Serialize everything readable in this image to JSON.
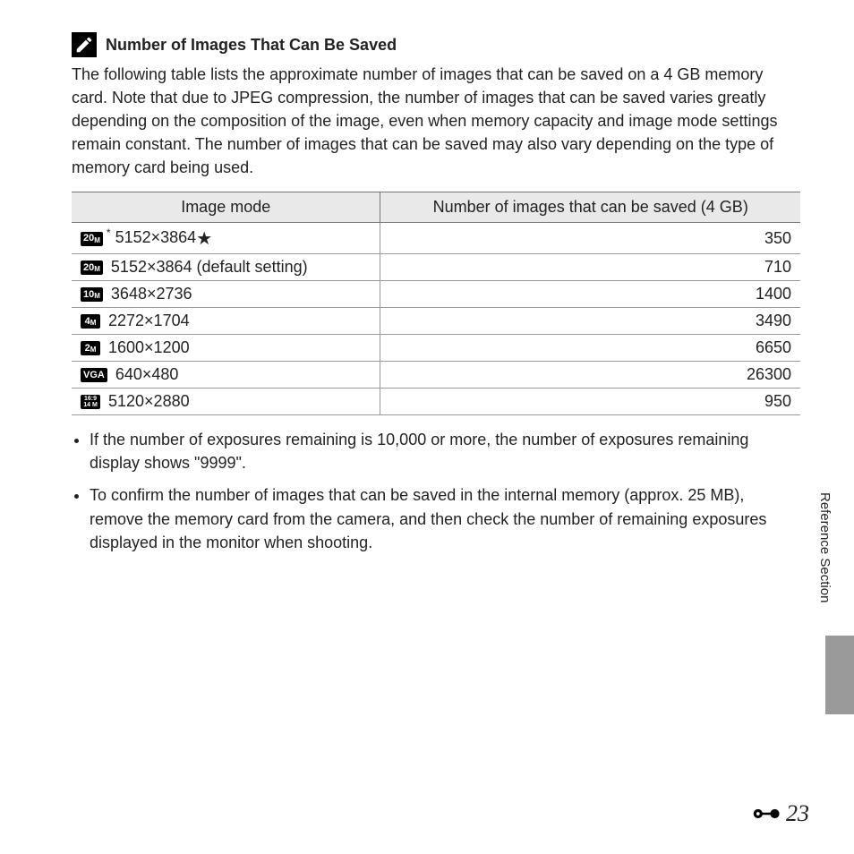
{
  "heading": "Number of Images That Can Be Saved",
  "intro": "The following table lists the approximate number of images that can be saved on a 4 GB memory card. Note that due to JPEG compression, the number of images that can be saved varies greatly depending on the composition of the image, even when memory capacity and image mode settings remain constant. The number of images that can be saved may also vary depending on the type of memory card being used.",
  "table": {
    "col1": "Image mode",
    "col2": "Number of images that can be saved (4 GB)",
    "rows": [
      {
        "badge_main": "20",
        "badge_sub": "M",
        "badge_kind": "mp",
        "star_prefix": true,
        "label": "5152×3864",
        "star_suffix": true,
        "count": "350"
      },
      {
        "badge_main": "20",
        "badge_sub": "M",
        "badge_kind": "mp",
        "label": "5152×3864 (default setting)",
        "count": "710"
      },
      {
        "badge_main": "10",
        "badge_sub": "M",
        "badge_kind": "mp",
        "label": "3648×2736",
        "count": "1400"
      },
      {
        "badge_main": "4",
        "badge_sub": "M",
        "badge_kind": "mp",
        "label": "2272×1704",
        "count": "3490"
      },
      {
        "badge_main": "2",
        "badge_sub": "M",
        "badge_kind": "mp",
        "label": "1600×1200",
        "count": "6650"
      },
      {
        "badge_main": "VGA",
        "badge_sub": "",
        "badge_kind": "vga",
        "label": "640×480",
        "count": "26300"
      },
      {
        "badge_main": "16:9",
        "badge_sub": "14 M",
        "badge_kind": "ratio",
        "label": "5120×2880",
        "count": "950"
      }
    ]
  },
  "bullets": [
    "If the number of exposures remaining is 10,000 or more, the number of exposures remaining display shows \"9999\".",
    "To confirm the number of images that can be saved in the internal memory (approx. 25 MB), remove the memory card from the camera, and then check the number of remaining exposures displayed in the monitor when shooting."
  ],
  "side_label": "Reference Section",
  "page_number": "23",
  "colors": {
    "header_bg": "#e9e9e9",
    "border": "#777777",
    "row_border": "#999999",
    "side_tab": "#9a9a9a"
  }
}
